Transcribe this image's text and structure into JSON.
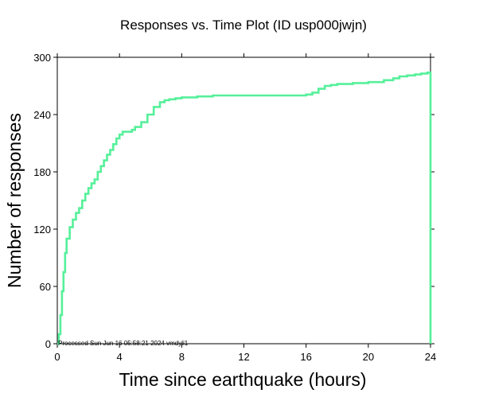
{
  "chart_data": {
    "type": "line",
    "title": "Responses vs. Time Plot (ID usp000jwjn)",
    "xlabel": "Time since earthquake (hours)",
    "ylabel": "Number of responses",
    "xlim": [
      0,
      24
    ],
    "ylim": [
      0,
      300
    ],
    "xticks": [
      0,
      4,
      8,
      12,
      16,
      20,
      24
    ],
    "yticks": [
      0,
      60,
      120,
      180,
      240,
      300
    ],
    "grid": false,
    "line_color": "#55f09a",
    "annotation": "Processed Sun Jun 16 05:58:21 2024 vmdyli1",
    "series": [
      {
        "x": [
          0,
          0.1,
          0.2,
          0.3,
          0.4,
          0.5,
          0.6,
          0.8,
          1.0,
          1.2,
          1.4,
          1.6,
          1.8,
          2.0,
          2.2,
          2.4,
          2.6,
          2.8,
          3.0,
          3.2,
          3.4,
          3.6,
          3.8,
          4.0,
          4.2,
          4.4,
          4.6,
          4.8,
          5.0,
          5.4,
          5.8,
          6.2,
          6.6,
          6.9,
          7.2,
          7.6,
          8.0,
          9.0,
          10.0,
          12.0,
          14.0,
          15.0,
          16.0,
          16.4,
          16.8,
          17.2,
          17.6,
          18.0,
          18.6,
          19.0,
          20.0,
          20.6,
          21.0,
          21.6,
          22.0,
          22.5,
          23.0,
          23.4,
          23.8,
          24.0,
          24.0
        ],
        "y": [
          0,
          10,
          30,
          55,
          75,
          95,
          110,
          122,
          130,
          137,
          142,
          150,
          157,
          163,
          168,
          172,
          180,
          186,
          192,
          198,
          203,
          209,
          215,
          219,
          222,
          222,
          222,
          224,
          227,
          232,
          240,
          248,
          253,
          255,
          256,
          257,
          258,
          259,
          260,
          260,
          260,
          260,
          261,
          263,
          267,
          270,
          271,
          272,
          272,
          273,
          274,
          274,
          276,
          278,
          280,
          281,
          282,
          283,
          284,
          284,
          0
        ]
      }
    ]
  }
}
